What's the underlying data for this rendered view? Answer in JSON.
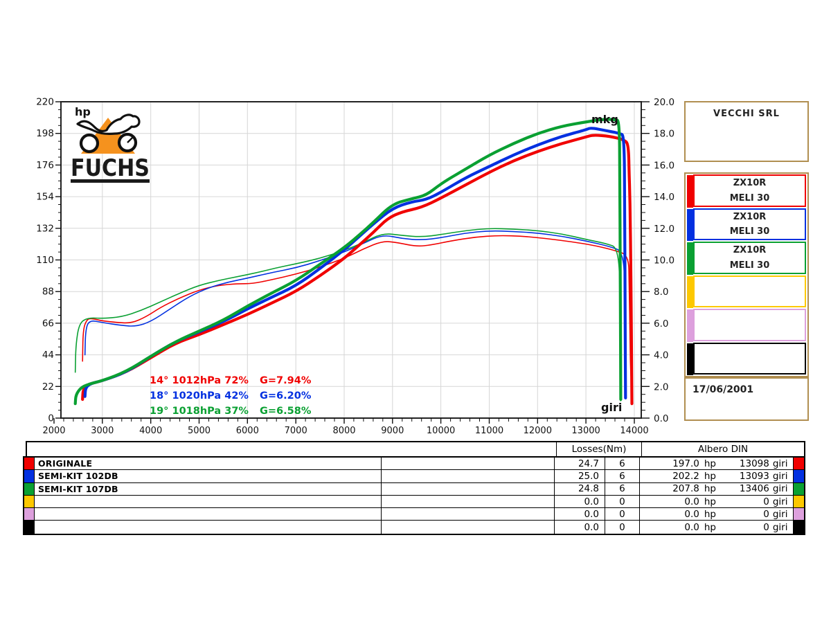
{
  "logo": {
    "text": "FUCHS",
    "icon": "motorcycle-icon",
    "triangle_color": "#f5921e"
  },
  "colors": {
    "red": "#f00000",
    "blue": "#0330e0",
    "green": "#0aa032",
    "yellow": "#fdc800",
    "violet": "#dda0dd",
    "black": "#000000",
    "panel_border": "#b08e50",
    "grid": "#d6d6d6",
    "plot_border": "#222222",
    "text": "#111111"
  },
  "chart_data": {
    "type": "line",
    "title": "",
    "grid": true,
    "x_axis": {
      "label": "giri",
      "min": 2000,
      "max": 14000,
      "major_step": 1000,
      "minor_step": 200,
      "tick_labels": [
        "2000",
        "3000",
        "4000",
        "5000",
        "6000",
        "7000",
        "8000",
        "9000",
        "10000",
        "11000",
        "12000",
        "13000",
        "14000"
      ]
    },
    "y_left": {
      "label": "hp",
      "min": 0,
      "max": 220,
      "major_step": 22,
      "minor_step": 5.5,
      "tick_labels": [
        "0",
        "22",
        "44",
        "66",
        "88",
        "110",
        "132",
        "154",
        "176",
        "198",
        "220"
      ]
    },
    "y_right": {
      "label": "mkg",
      "min": 0,
      "max": 20,
      "major_step": 2,
      "minor_step": 0.5,
      "tick_labels": [
        "0.0",
        "2.0",
        "4.0",
        "6.0",
        "8.0",
        "10.0",
        "12.0",
        "14.0",
        "16.0",
        "18.0",
        "20.0"
      ]
    },
    "annotations": [
      {
        "color_key": "red",
        "condition": "14°  1012hPa  72%",
        "correction": "G=7.94%"
      },
      {
        "color_key": "blue",
        "condition": "18°  1020hPa  42%",
        "correction": "G=6.20%"
      },
      {
        "color_key": "green",
        "condition": "19°  1018hPa  37%",
        "correction": "G=6.58%"
      }
    ],
    "series": [
      {
        "name": "ORIGINALE",
        "quantity": "torque",
        "axis": "mkg",
        "color_key": "red",
        "width": 1.6,
        "points": [
          [
            2590,
            3.6
          ],
          [
            2600,
            5.6
          ],
          [
            2680,
            6.25
          ],
          [
            2780,
            6.3
          ],
          [
            3000,
            6.15
          ],
          [
            3300,
            6.05
          ],
          [
            3600,
            6.0
          ],
          [
            3900,
            6.4
          ],
          [
            4200,
            7.0
          ],
          [
            4600,
            7.6
          ],
          [
            5000,
            8.1
          ],
          [
            5400,
            8.4
          ],
          [
            5800,
            8.5
          ],
          [
            6100,
            8.5
          ],
          [
            6500,
            8.75
          ],
          [
            7000,
            9.1
          ],
          [
            7500,
            9.55
          ],
          [
            8000,
            10.1
          ],
          [
            8400,
            10.7
          ],
          [
            8800,
            11.2
          ],
          [
            9100,
            11.1
          ],
          [
            9500,
            10.85
          ],
          [
            9800,
            10.95
          ],
          [
            10200,
            11.2
          ],
          [
            10700,
            11.45
          ],
          [
            11200,
            11.55
          ],
          [
            11700,
            11.5
          ],
          [
            12200,
            11.35
          ],
          [
            12700,
            11.15
          ],
          [
            13200,
            10.9
          ],
          [
            13600,
            10.6
          ],
          [
            13880,
            10.3
          ],
          [
            13895,
            8.5
          ],
          [
            13910,
            5.0
          ],
          [
            13925,
            2.8
          ],
          [
            13945,
            2.3
          ]
        ]
      },
      {
        "name": "SEMI-KIT 102DB",
        "quantity": "torque",
        "axis": "mkg",
        "color_key": "blue",
        "width": 1.6,
        "points": [
          [
            2640,
            4.0
          ],
          [
            2650,
            5.5
          ],
          [
            2720,
            6.2
          ],
          [
            3000,
            6.05
          ],
          [
            3400,
            5.85
          ],
          [
            3700,
            5.8
          ],
          [
            4000,
            6.1
          ],
          [
            4400,
            6.9
          ],
          [
            4800,
            7.7
          ],
          [
            5200,
            8.25
          ],
          [
            5600,
            8.6
          ],
          [
            6000,
            8.85
          ],
          [
            6500,
            9.2
          ],
          [
            7000,
            9.5
          ],
          [
            7500,
            9.95
          ],
          [
            8000,
            10.5
          ],
          [
            8400,
            11.05
          ],
          [
            8800,
            11.6
          ],
          [
            9200,
            11.35
          ],
          [
            9600,
            11.25
          ],
          [
            10000,
            11.4
          ],
          [
            10500,
            11.7
          ],
          [
            11000,
            11.85
          ],
          [
            11500,
            11.8
          ],
          [
            12000,
            11.7
          ],
          [
            12500,
            11.5
          ],
          [
            13000,
            11.2
          ],
          [
            13500,
            10.85
          ],
          [
            13790,
            10.5
          ],
          [
            13800,
            7.0
          ],
          [
            13810,
            3.0
          ],
          [
            13818,
            1.6
          ]
        ]
      },
      {
        "name": "SEMI-KIT 107DB",
        "quantity": "torque",
        "axis": "mkg",
        "color_key": "green",
        "width": 1.6,
        "points": [
          [
            2440,
            2.9
          ],
          [
            2450,
            4.6
          ],
          [
            2520,
            6.0
          ],
          [
            2700,
            6.35
          ],
          [
            3000,
            6.3
          ],
          [
            3400,
            6.4
          ],
          [
            3800,
            6.8
          ],
          [
            4200,
            7.35
          ],
          [
            4600,
            7.9
          ],
          [
            5000,
            8.4
          ],
          [
            5400,
            8.7
          ],
          [
            5800,
            8.95
          ],
          [
            6200,
            9.2
          ],
          [
            6600,
            9.5
          ],
          [
            7000,
            9.75
          ],
          [
            7500,
            10.1
          ],
          [
            8000,
            10.6
          ],
          [
            8400,
            11.1
          ],
          [
            8800,
            11.7
          ],
          [
            9200,
            11.55
          ],
          [
            9600,
            11.45
          ],
          [
            10000,
            11.6
          ],
          [
            10500,
            11.85
          ],
          [
            11000,
            12.0
          ],
          [
            11500,
            11.95
          ],
          [
            12000,
            11.85
          ],
          [
            12500,
            11.65
          ],
          [
            13000,
            11.3
          ],
          [
            13400,
            11.05
          ],
          [
            13690,
            10.75
          ],
          [
            13700,
            6.5
          ],
          [
            13710,
            2.5
          ],
          [
            13718,
            1.1
          ]
        ]
      },
      {
        "name": "ORIGINALE",
        "quantity": "power",
        "axis": "hp",
        "color_key": "red",
        "width": 4.2,
        "points": [
          [
            2590,
            13
          ],
          [
            2600,
            20
          ],
          [
            2700,
            23.5
          ],
          [
            3000,
            26
          ],
          [
            3500,
            32
          ],
          [
            4000,
            42
          ],
          [
            4500,
            52
          ],
          [
            5000,
            58
          ],
          [
            5500,
            65
          ],
          [
            6000,
            72
          ],
          [
            6500,
            80
          ],
          [
            7000,
            88
          ],
          [
            7500,
            99
          ],
          [
            8000,
            111
          ],
          [
            8300,
            120
          ],
          [
            8600,
            129
          ],
          [
            8900,
            139
          ],
          [
            9200,
            143.5
          ],
          [
            9600,
            146.5
          ],
          [
            10000,
            153
          ],
          [
            10500,
            162
          ],
          [
            11000,
            171
          ],
          [
            11500,
            179
          ],
          [
            12000,
            185.5
          ],
          [
            12500,
            191
          ],
          [
            13000,
            195.5
          ],
          [
            13150,
            197
          ],
          [
            13500,
            196
          ],
          [
            13800,
            193.5
          ],
          [
            13880,
            190
          ],
          [
            13895,
            168
          ],
          [
            13905,
            158
          ],
          [
            13915,
            140
          ],
          [
            13925,
            112
          ],
          [
            13935,
            80
          ],
          [
            13945,
            34
          ],
          [
            13950,
            10
          ]
        ]
      },
      {
        "name": "SEMI-KIT 102DB",
        "quantity": "power",
        "axis": "hp",
        "color_key": "blue",
        "width": 4.2,
        "points": [
          [
            2640,
            15
          ],
          [
            2650,
            21
          ],
          [
            2750,
            24
          ],
          [
            3000,
            26
          ],
          [
            3500,
            32
          ],
          [
            4000,
            43
          ],
          [
            4500,
            53
          ],
          [
            5000,
            60
          ],
          [
            5500,
            67
          ],
          [
            6000,
            76
          ],
          [
            6500,
            84
          ],
          [
            7000,
            92
          ],
          [
            7500,
            104
          ],
          [
            8000,
            117
          ],
          [
            8300,
            126
          ],
          [
            8600,
            135
          ],
          [
            9000,
            146
          ],
          [
            9400,
            150.5
          ],
          [
            9700,
            152
          ],
          [
            10000,
            157
          ],
          [
            10500,
            167
          ],
          [
            11000,
            175
          ],
          [
            11500,
            183
          ],
          [
            12000,
            190
          ],
          [
            12500,
            196
          ],
          [
            13000,
            200.5
          ],
          [
            13100,
            202
          ],
          [
            13400,
            200
          ],
          [
            13700,
            198
          ],
          [
            13790,
            196.5
          ],
          [
            13800,
            150
          ],
          [
            13810,
            70
          ],
          [
            13818,
            14
          ]
        ]
      },
      {
        "name": "SEMI-KIT 107DB",
        "quantity": "power",
        "axis": "hp",
        "color_key": "green",
        "width": 4.2,
        "points": [
          [
            2440,
            10
          ],
          [
            2450,
            16
          ],
          [
            2550,
            21
          ],
          [
            2700,
            23.5
          ],
          [
            3000,
            26
          ],
          [
            3500,
            32.5
          ],
          [
            4000,
            43
          ],
          [
            4500,
            53
          ],
          [
            5000,
            60.5
          ],
          [
            5500,
            68
          ],
          [
            6000,
            78
          ],
          [
            6500,
            87
          ],
          [
            7000,
            95.5
          ],
          [
            7500,
            107
          ],
          [
            8000,
            118.5
          ],
          [
            8300,
            127
          ],
          [
            8600,
            136
          ],
          [
            9000,
            149
          ],
          [
            9400,
            152.5
          ],
          [
            9700,
            155
          ],
          [
            10000,
            163
          ],
          [
            10500,
            173
          ],
          [
            11000,
            183
          ],
          [
            11500,
            191
          ],
          [
            12000,
            198
          ],
          [
            12500,
            203
          ],
          [
            13000,
            206
          ],
          [
            13406,
            208
          ],
          [
            13600,
            207.5
          ],
          [
            13690,
            207
          ],
          [
            13700,
            170
          ],
          [
            13710,
            90
          ],
          [
            13720,
            13
          ]
        ]
      }
    ]
  },
  "side_panel": {
    "company": "VECCHI SRL",
    "date": "17/06/2001",
    "entries": [
      {
        "color_key": "red",
        "line1": "ZX10R",
        "line2": "MELI 30"
      },
      {
        "color_key": "blue",
        "line1": "ZX10R",
        "line2": "MELI 30"
      },
      {
        "color_key": "green",
        "line1": "ZX10R",
        "line2": "MELI 30"
      },
      {
        "color_key": "yellow",
        "line1": "",
        "line2": ""
      },
      {
        "color_key": "violet",
        "line1": "",
        "line2": ""
      },
      {
        "color_key": "black",
        "line1": "",
        "line2": ""
      }
    ]
  },
  "table": {
    "headers": {
      "left": "",
      "losses": "Losses(Nm)",
      "albero": "Albero DIN"
    },
    "unit_hp": "hp",
    "unit_giri": "giri",
    "rows": [
      {
        "color_key": "red",
        "name": "ORIGINALE",
        "loss_nm": "24.7",
        "loss_n": "6",
        "hp": "197.0",
        "giri": "13098"
      },
      {
        "color_key": "blue",
        "name": "SEMI-KIT 102DB",
        "loss_nm": "25.0",
        "loss_n": "6",
        "hp": "202.2",
        "giri": "13093"
      },
      {
        "color_key": "green",
        "name": "SEMI-KIT 107DB",
        "loss_nm": "24.8",
        "loss_n": "6",
        "hp": "207.8",
        "giri": "13406"
      },
      {
        "color_key": "yellow",
        "name": "",
        "loss_nm": "0.0",
        "loss_n": "0",
        "hp": "0.0",
        "giri": "0"
      },
      {
        "color_key": "violet",
        "name": "",
        "loss_nm": "0.0",
        "loss_n": "0",
        "hp": "0.0",
        "giri": "0"
      },
      {
        "color_key": "black",
        "name": "",
        "loss_nm": "0.0",
        "loss_n": "0",
        "hp": "0.0",
        "giri": "0"
      }
    ]
  }
}
